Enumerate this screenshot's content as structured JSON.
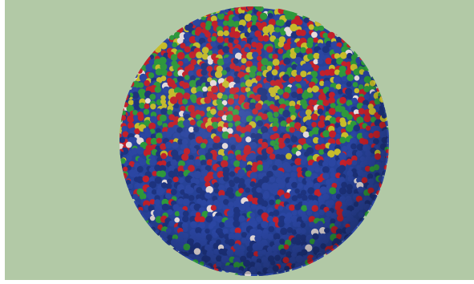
{
  "image": {
    "background_color": "#b2c9a6",
    "edge_color": "#ffffff",
    "sphere_base_color": "#26429a",
    "cell_colors": {
      "blue": "#2b46a3",
      "blue_dark": "#1d3380",
      "red": "#c4202a",
      "green": "#2e9a3c",
      "yellow": "#c8be2a",
      "white": "#e8dede"
    }
  }
}
